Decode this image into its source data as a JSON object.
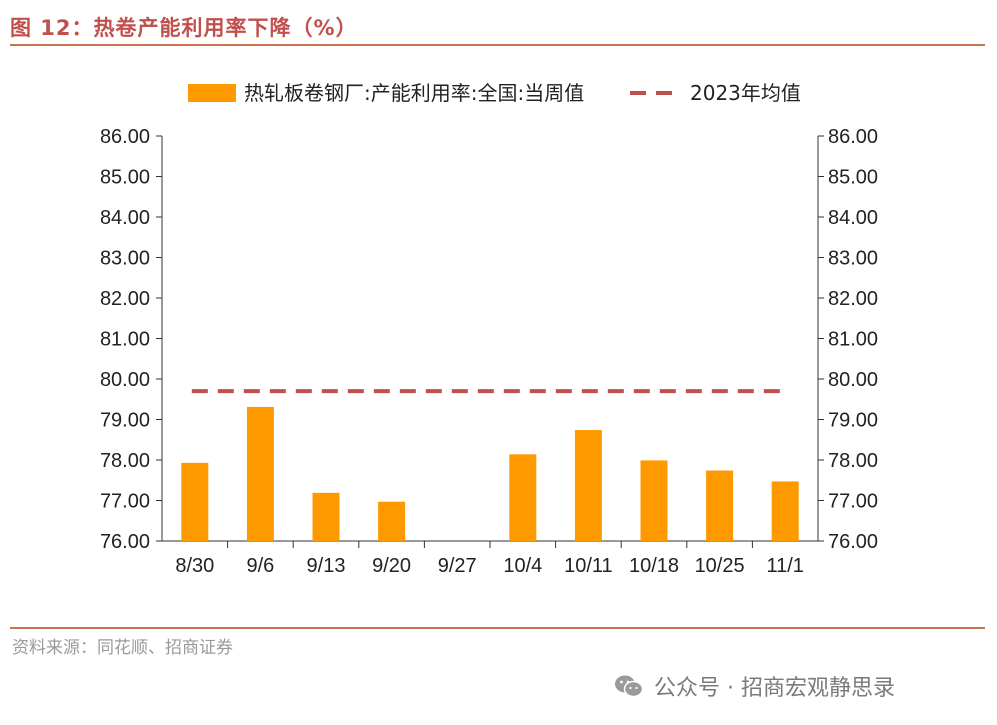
{
  "header": {
    "title": "图 12：热卷产能利用率下降（%）"
  },
  "footer": {
    "source": "资料来源：同花顺、招商证券",
    "watermark": "公众号 · 招商宏观静思录",
    "watermark_icon": "wechat-icon"
  },
  "colors": {
    "bar": "#FF9900",
    "avg_line": "#C0504D",
    "axis": "#333333",
    "title": "#C0504D"
  },
  "chart_data": {
    "type": "bar",
    "categories": [
      "8/30",
      "9/6",
      "9/13",
      "9/20",
      "9/27",
      "10/4",
      "10/11",
      "10/18",
      "10/25",
      "11/1"
    ],
    "series": [
      {
        "name": "热轧板卷钢厂:产能利用率:全国:当周值",
        "type": "bar",
        "values": [
          77.93,
          79.31,
          77.19,
          76.97,
          null,
          78.14,
          78.74,
          77.99,
          77.74,
          77.47
        ]
      },
      {
        "name": "2023年均值",
        "type": "line",
        "style": "dashed",
        "value": 79.7
      }
    ],
    "ylim": [
      76.0,
      86.0
    ],
    "yticks": [
      "76.00",
      "77.00",
      "78.00",
      "79.00",
      "80.00",
      "81.00",
      "82.00",
      "83.00",
      "84.00",
      "85.00",
      "86.00"
    ],
    "y2ticks": [
      "76.00",
      "77.00",
      "78.00",
      "79.00",
      "80.00",
      "81.00",
      "82.00",
      "83.00",
      "84.00",
      "85.00",
      "86.00"
    ],
    "legend_position": "top",
    "grid": false
  }
}
